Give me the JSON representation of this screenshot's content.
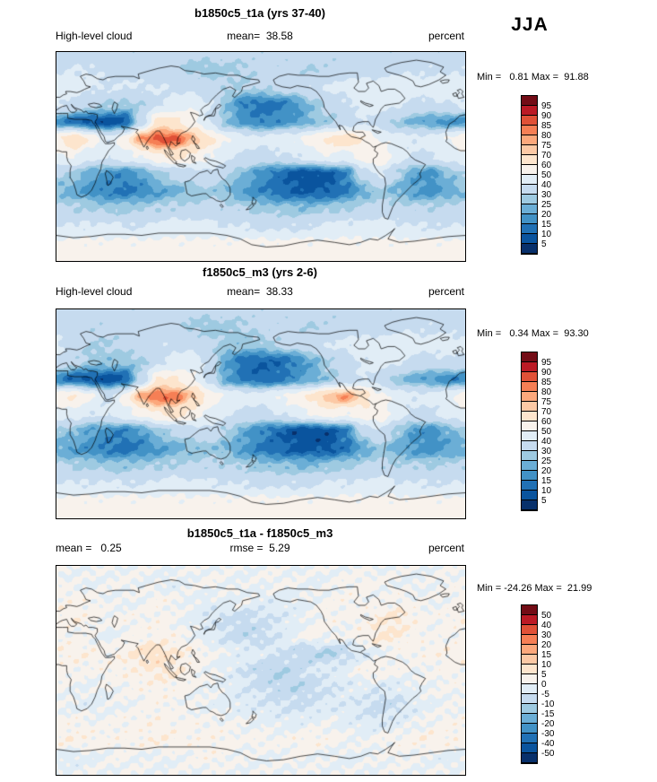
{
  "header": {
    "season_label": "JJA"
  },
  "palette": {
    "colors_low_to_high": [
      "#08306b",
      "#0a549e",
      "#2171b5",
      "#4292c6",
      "#6baed6",
      "#9ecae1",
      "#c6dbef",
      "#e1edf6",
      "#f8f2ec",
      "#fde5cd",
      "#fcc9a5",
      "#fca87c",
      "#f67f55",
      "#e05137",
      "#bb1a25",
      "#730c16"
    ],
    "coastline_color": "#000000",
    "frame_color": "#000000"
  },
  "chart_data": [
    {
      "type": "heatmap",
      "title": "b1850c5_t1a (yrs 37-40)",
      "labels": {
        "left": "High-level cloud",
        "center": "mean=  38.58",
        "right": "percent"
      },
      "stats_label": "Min =   0.81 Max =  91.88",
      "mean": 38.58,
      "min": 0.81,
      "max": 91.88,
      "units": "percent",
      "projection": "equirectangular",
      "lon_range": [
        0,
        360
      ],
      "lat_range": [
        -90,
        90
      ],
      "levels": [
        5,
        10,
        15,
        20,
        25,
        30,
        40,
        50,
        60,
        70,
        75,
        80,
        85,
        90,
        95
      ],
      "colorbar_tick_labels": [
        "95",
        "90",
        "85",
        "80",
        "75",
        "70",
        "60",
        "50",
        "40",
        "30",
        "25",
        "20",
        "15",
        "10",
        "5"
      ],
      "grid_lon_step_deg": 15,
      "grid_lat_step_deg": 15,
      "values": [
        [
          33,
          33,
          33,
          33,
          33,
          33,
          33,
          33,
          33,
          33,
          33,
          33,
          33,
          33,
          33,
          33,
          33,
          33,
          33,
          33,
          33,
          33,
          33,
          33
        ],
        [
          38,
          40,
          40,
          38,
          35,
          33,
          35,
          33,
          28,
          27,
          28,
          30,
          32,
          33,
          32,
          30,
          32,
          33,
          35,
          36,
          38,
          38,
          38,
          38
        ],
        [
          46,
          45,
          42,
          40,
          40,
          41,
          40,
          38,
          37,
          34,
          31,
          30,
          31,
          33,
          36,
          39,
          41,
          43,
          45,
          46,
          47,
          46,
          46,
          46
        ],
        [
          42,
          38,
          33,
          30,
          28,
          30,
          38,
          45,
          48,
          40,
          25,
          15,
          13,
          14,
          18,
          26,
          33,
          38,
          44,
          45,
          42,
          38,
          38,
          40
        ],
        [
          18,
          12,
          8,
          7,
          8,
          35,
          65,
          62,
          55,
          40,
          25,
          18,
          15,
          17,
          20,
          24,
          28,
          34,
          40,
          35,
          28,
          24,
          20,
          18
        ],
        [
          58,
          70,
          58,
          42,
          55,
          80,
          88,
          86,
          75,
          62,
          50,
          45,
          42,
          45,
          48,
          55,
          62,
          68,
          60,
          50,
          45,
          42,
          45,
          50
        ],
        [
          48,
          52,
          42,
          42,
          45,
          50,
          58,
          62,
          58,
          50,
          42,
          38,
          36,
          38,
          40,
          45,
          50,
          45,
          55,
          58,
          45,
          38,
          40,
          45
        ],
        [
          30,
          28,
          22,
          18,
          16,
          20,
          28,
          32,
          35,
          38,
          30,
          24,
          18,
          12,
          8,
          7,
          8,
          15,
          35,
          42,
          30,
          20,
          18,
          25
        ],
        [
          25,
          22,
          18,
          15,
          14,
          16,
          20,
          24,
          26,
          28,
          25,
          20,
          16,
          12,
          10,
          9,
          10,
          14,
          22,
          28,
          24,
          20,
          18,
          22
        ],
        [
          32,
          30,
          30,
          28,
          28,
          30,
          30,
          32,
          32,
          33,
          32,
          30,
          28,
          27,
          26,
          26,
          28,
          30,
          32,
          33,
          32,
          31,
          31,
          32
        ],
        [
          40,
          40,
          42,
          42,
          40,
          40,
          42,
          44,
          44,
          42,
          40,
          40,
          38,
          38,
          38,
          40,
          42,
          42,
          44,
          44,
          42,
          40,
          40,
          40
        ],
        [
          52,
          52,
          52,
          52,
          52,
          52,
          52,
          52,
          52,
          52,
          52,
          52,
          52,
          52,
          52,
          52,
          52,
          52,
          52,
          52,
          52,
          52,
          52,
          52
        ],
        [
          55,
          55,
          55,
          55,
          55,
          55,
          55,
          55,
          55,
          55,
          55,
          55,
          55,
          55,
          55,
          55,
          55,
          55,
          55,
          55,
          55,
          55,
          55,
          55
        ]
      ]
    },
    {
      "type": "heatmap",
      "title": "f1850c5_m3 (yrs 2-6)",
      "labels": {
        "left": "High-level cloud",
        "center": "mean=  38.33",
        "right": "percent"
      },
      "stats_label": "Min =   0.34 Max =  93.30",
      "mean": 38.33,
      "min": 0.34,
      "max": 93.3,
      "units": "percent",
      "projection": "equirectangular",
      "lon_range": [
        0,
        360
      ],
      "lat_range": [
        -90,
        90
      ],
      "levels": [
        5,
        10,
        15,
        20,
        25,
        30,
        40,
        50,
        60,
        70,
        75,
        80,
        85,
        90,
        95
      ],
      "colorbar_tick_labels": [
        "95",
        "90",
        "85",
        "80",
        "75",
        "70",
        "60",
        "50",
        "40",
        "30",
        "25",
        "20",
        "15",
        "10",
        "5"
      ],
      "grid_lon_step_deg": 15,
      "grid_lat_step_deg": 15,
      "values": [
        [
          33,
          33,
          33,
          33,
          33,
          33,
          33,
          33,
          33,
          33,
          33,
          33,
          33,
          33,
          33,
          33,
          33,
          33,
          33,
          33,
          33,
          33,
          33,
          33
        ],
        [
          36,
          34,
          32,
          33,
          34,
          33,
          34,
          33,
          29,
          27,
          28,
          30,
          32,
          33,
          32,
          30,
          32,
          33,
          35,
          36,
          37,
          38,
          38,
          37
        ],
        [
          42,
          36,
          30,
          30,
          32,
          36,
          38,
          37,
          36,
          32,
          28,
          27,
          28,
          31,
          34,
          38,
          40,
          42,
          44,
          45,
          46,
          45,
          44,
          44
        ],
        [
          38,
          32,
          28,
          27,
          26,
          29,
          36,
          44,
          45,
          35,
          20,
          12,
          10,
          11,
          15,
          22,
          30,
          36,
          42,
          44,
          42,
          38,
          37,
          38
        ],
        [
          16,
          11,
          8,
          7,
          9,
          33,
          62,
          60,
          52,
          35,
          20,
          14,
          11,
          13,
          17,
          22,
          27,
          33,
          40,
          36,
          27,
          23,
          19,
          16
        ],
        [
          55,
          62,
          52,
          38,
          52,
          78,
          85,
          83,
          72,
          58,
          48,
          45,
          45,
          50,
          55,
          62,
          74,
          80,
          66,
          52,
          46,
          42,
          44,
          48
        ],
        [
          46,
          44,
          40,
          42,
          46,
          52,
          60,
          63,
          57,
          48,
          40,
          37,
          36,
          40,
          44,
          50,
          56,
          50,
          56,
          56,
          44,
          37,
          38,
          44
        ],
        [
          28,
          26,
          20,
          17,
          15,
          19,
          27,
          31,
          34,
          37,
          29,
          22,
          16,
          11,
          7,
          6,
          7,
          14,
          33,
          40,
          28,
          19,
          17,
          23
        ],
        [
          23,
          20,
          17,
          14,
          13,
          15,
          19,
          23,
          25,
          27,
          24,
          19,
          14,
          11,
          9,
          8,
          9,
          13,
          21,
          27,
          23,
          19,
          17,
          20
        ],
        [
          31,
          29,
          29,
          27,
          27,
          29,
          29,
          31,
          31,
          32,
          31,
          29,
          27,
          26,
          25,
          25,
          27,
          29,
          31,
          32,
          31,
          30,
          30,
          31
        ],
        [
          40,
          40,
          41,
          41,
          40,
          40,
          41,
          43,
          43,
          41,
          40,
          39,
          38,
          38,
          38,
          39,
          41,
          41,
          43,
          43,
          41,
          40,
          40,
          40
        ],
        [
          52,
          52,
          52,
          52,
          52,
          52,
          52,
          52,
          52,
          52,
          52,
          52,
          52,
          52,
          52,
          52,
          52,
          52,
          52,
          52,
          52,
          52,
          52,
          52
        ],
        [
          55,
          55,
          55,
          55,
          55,
          55,
          55,
          55,
          55,
          55,
          55,
          55,
          55,
          55,
          55,
          55,
          55,
          55,
          55,
          55,
          55,
          55,
          55,
          55
        ]
      ]
    },
    {
      "type": "heatmap",
      "title": "b1850c5_t1a - f1850c5_m3",
      "labels": {
        "left": "mean =   0.25",
        "center": "rmse =  5.29",
        "right": "percent"
      },
      "stats_label": "Min = -24.26 Max =  21.99",
      "mean": 0.25,
      "rmse": 5.29,
      "min": -24.26,
      "max": 21.99,
      "units": "percent",
      "projection": "equirectangular",
      "lon_range": [
        0,
        360
      ],
      "lat_range": [
        -90,
        90
      ],
      "levels": [
        -50,
        -40,
        -30,
        -20,
        -15,
        -10,
        -5,
        0,
        5,
        10,
        15,
        20,
        30,
        40,
        50
      ],
      "colorbar_tick_labels": [
        "50",
        "40",
        "30",
        "20",
        "15",
        "10",
        "5",
        "0",
        "-5",
        "-10",
        "-15",
        "-20",
        "-30",
        "-40",
        "-50"
      ],
      "grid_lon_step_deg": 15,
      "grid_lat_step_deg": 15,
      "values": [
        [
          0,
          0,
          0,
          0,
          0,
          0,
          0,
          0,
          0,
          0,
          0,
          0,
          0,
          0,
          0,
          0,
          0,
          0,
          0,
          0,
          0,
          0,
          0,
          0
        ],
        [
          1,
          0,
          -1,
          0,
          1,
          0,
          -1,
          -2,
          0,
          1,
          0,
          -1,
          0,
          1,
          0,
          -1,
          0,
          1,
          2,
          1,
          0,
          -1,
          0,
          1
        ],
        [
          2,
          3,
          2,
          0,
          -1,
          0,
          2,
          1,
          -1,
          -2,
          -1,
          0,
          -2,
          -3,
          -2,
          0,
          1,
          2,
          1,
          0,
          2,
          1,
          0,
          1
        ],
        [
          3,
          4,
          2,
          1,
          2,
          1,
          2,
          0,
          -2,
          -4,
          -6,
          -7,
          -6,
          -4,
          -2,
          0,
          2,
          1,
          2,
          5,
          6,
          3,
          1,
          2
        ],
        [
          2,
          1,
          0,
          -1,
          0,
          2,
          3,
          2,
          0,
          -3,
          -6,
          -8,
          -7,
          -4,
          -1,
          2,
          1,
          0,
          3,
          6,
          5,
          2,
          1,
          1
        ],
        [
          3,
          4,
          3,
          2,
          4,
          7,
          8,
          5,
          3,
          1,
          -1,
          -2,
          -3,
          -5,
          -7,
          -9,
          -10,
          -7,
          -4,
          -1,
          1,
          2,
          3,
          3
        ],
        [
          2,
          2,
          1,
          2,
          3,
          4,
          6,
          5,
          2,
          0,
          -2,
          -5,
          -8,
          -10,
          -8,
          -5,
          -3,
          -2,
          2,
          3,
          1,
          0,
          1,
          2
        ],
        [
          1,
          0,
          -1,
          0,
          1,
          2,
          3,
          2,
          1,
          0,
          -2,
          -4,
          -6,
          -8,
          -9,
          -7,
          -5,
          -3,
          -2,
          -4,
          -3,
          -1,
          0,
          1
        ],
        [
          0,
          -1,
          -2,
          -1,
          0,
          1,
          2,
          1,
          0,
          -1,
          -2,
          -3,
          -4,
          -5,
          -6,
          -5,
          -4,
          -3,
          -5,
          -7,
          -6,
          -3,
          -1,
          0
        ],
        [
          2,
          2,
          1,
          1,
          2,
          2,
          3,
          2,
          2,
          1,
          1,
          0,
          -1,
          -2,
          -2,
          -1,
          0,
          -2,
          -3,
          -4,
          -3,
          -1,
          1,
          2
        ],
        [
          3,
          4,
          3,
          2,
          2,
          3,
          4,
          3,
          2,
          3,
          2,
          1,
          2,
          1,
          2,
          3,
          2,
          1,
          0,
          1,
          2,
          3,
          4,
          3
        ],
        [
          -2,
          -3,
          -1,
          0,
          1,
          0,
          -1,
          0,
          1,
          2,
          1,
          0,
          -1,
          0,
          1,
          0,
          -1,
          -2,
          -1,
          0,
          1,
          0,
          -1,
          -2
        ],
        [
          0,
          0,
          0,
          0,
          0,
          0,
          0,
          0,
          0,
          0,
          0,
          0,
          0,
          0,
          0,
          0,
          0,
          0,
          0,
          0,
          0,
          0,
          0,
          0
        ]
      ]
    }
  ]
}
